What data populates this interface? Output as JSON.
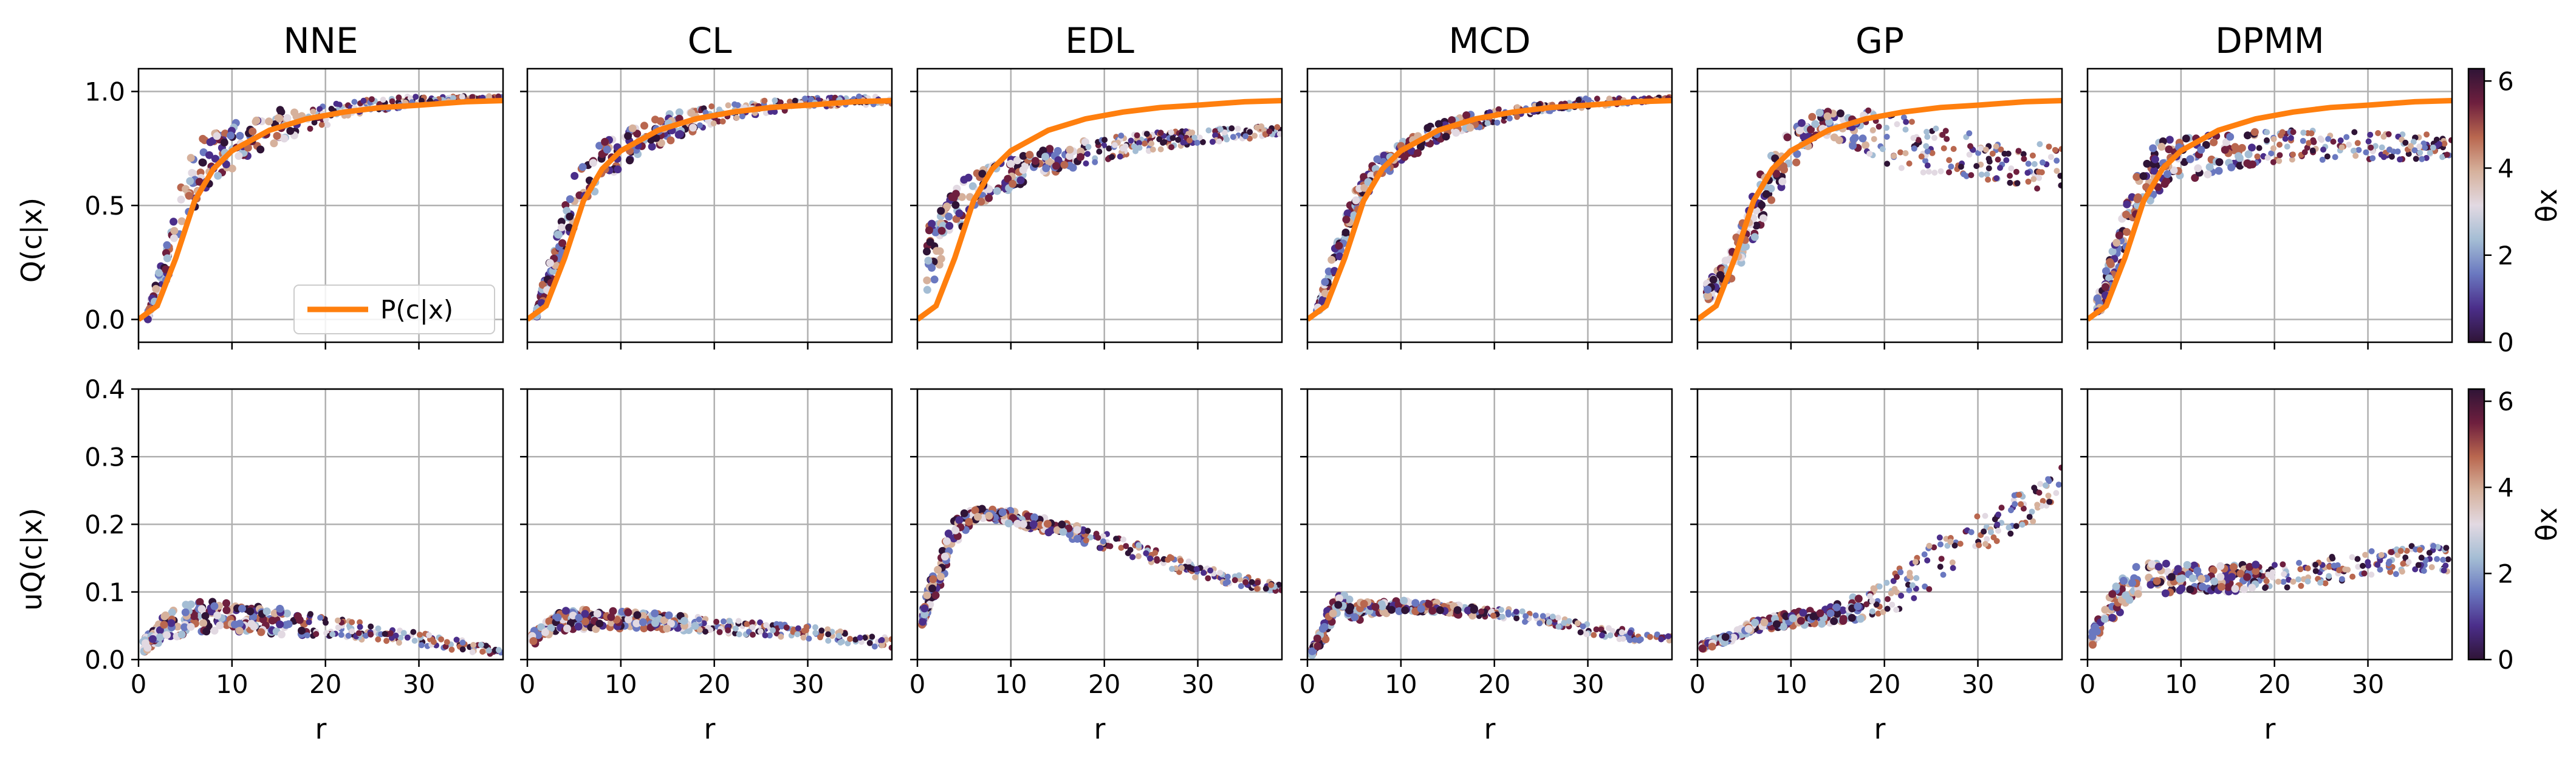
{
  "figure": {
    "colorbar_label": "θx",
    "colorbar_ticks": [
      "0",
      "2",
      "4",
      "6"
    ],
    "xlabel": "r",
    "row_labels": {
      "top": "Q(c|x)",
      "bottom": "uQ(c|x)"
    }
  },
  "colors": {
    "reference_line": "#ff7f0e",
    "grid": "#b0b0b0",
    "colormap_twilight_shifted": [
      "#2f1436",
      "#4b2e8a",
      "#6a78c0",
      "#a4bdd4",
      "#e2d9e2",
      "#d6b19c",
      "#b9674f",
      "#6e1f3e",
      "#2f1436"
    ]
  },
  "chart_data": [
    {
      "type": "scatter",
      "title": "NNE",
      "row": "Q(c|x)",
      "xlabel": "",
      "ylabel": "Q(c|x)",
      "xlim": [
        0,
        39
      ],
      "ylim": [
        -0.1,
        1.1
      ],
      "xticks": [
        0,
        10,
        20,
        30
      ],
      "yticks": [
        0.0,
        0.5,
        1.0
      ],
      "grid": true,
      "legend": {
        "entries": [
          "P(c|x)"
        ],
        "placement": "lower-right"
      },
      "reference": {
        "name": "P(c|x)",
        "x": [
          0,
          2,
          4,
          6,
          8,
          10,
          14,
          18,
          22,
          26,
          30,
          35,
          39
        ],
        "y": [
          0.0,
          0.06,
          0.27,
          0.52,
          0.66,
          0.74,
          0.83,
          0.88,
          0.91,
          0.93,
          0.94,
          0.955,
          0.96
        ]
      },
      "scatter": {
        "x": [
          1,
          3,
          5,
          7,
          10,
          15,
          20,
          25,
          30,
          35,
          39
        ],
        "y": [
          0.02,
          0.25,
          0.55,
          0.68,
          0.76,
          0.85,
          0.9,
          0.94,
          0.96,
          0.97,
          0.97
        ],
        "spread": [
          0.02,
          0.08,
          0.14,
          0.12,
          0.1,
          0.07,
          0.05,
          0.03,
          0.02,
          0.01,
          0.01
        ]
      }
    },
    {
      "type": "scatter",
      "title": "CL",
      "row": "Q(c|x)",
      "xlabel": "",
      "ylabel": "",
      "xlim": [
        0,
        39
      ],
      "ylim": [
        -0.1,
        1.1
      ],
      "xticks": [
        0,
        10,
        20,
        30
      ],
      "yticks": [
        0.0,
        0.5,
        1.0
      ],
      "grid": true,
      "reference": {
        "name": "P(c|x)",
        "x": [
          0,
          2,
          4,
          6,
          8,
          10,
          14,
          18,
          22,
          26,
          30,
          35,
          39
        ],
        "y": [
          0.0,
          0.06,
          0.27,
          0.52,
          0.66,
          0.74,
          0.83,
          0.88,
          0.91,
          0.93,
          0.94,
          0.955,
          0.96
        ]
      },
      "scatter": {
        "x": [
          1,
          3,
          5,
          7,
          10,
          15,
          20,
          25,
          30,
          35,
          39
        ],
        "y": [
          0.03,
          0.28,
          0.52,
          0.65,
          0.75,
          0.84,
          0.9,
          0.93,
          0.95,
          0.96,
          0.96
        ],
        "spread": [
          0.02,
          0.09,
          0.12,
          0.1,
          0.08,
          0.06,
          0.04,
          0.03,
          0.02,
          0.02,
          0.02
        ]
      }
    },
    {
      "type": "scatter",
      "title": "EDL",
      "row": "Q(c|x)",
      "xlabel": "",
      "ylabel": "",
      "xlim": [
        0,
        39
      ],
      "ylim": [
        -0.1,
        1.1
      ],
      "xticks": [
        0,
        10,
        20,
        30
      ],
      "yticks": [
        0.0,
        0.5,
        1.0
      ],
      "grid": true,
      "reference": {
        "name": "P(c|x)",
        "x": [
          0,
          2,
          4,
          6,
          8,
          10,
          14,
          18,
          22,
          26,
          30,
          35,
          39
        ],
        "y": [
          0.0,
          0.06,
          0.27,
          0.52,
          0.66,
          0.74,
          0.83,
          0.88,
          0.91,
          0.93,
          0.94,
          0.955,
          0.96
        ]
      },
      "scatter": {
        "x": [
          1,
          3,
          5,
          7,
          10,
          15,
          20,
          25,
          30,
          35,
          39
        ],
        "y": [
          0.25,
          0.4,
          0.52,
          0.58,
          0.64,
          0.7,
          0.75,
          0.78,
          0.8,
          0.82,
          0.83
        ],
        "spread": [
          0.15,
          0.12,
          0.1,
          0.08,
          0.07,
          0.06,
          0.05,
          0.04,
          0.03,
          0.03,
          0.02
        ]
      }
    },
    {
      "type": "scatter",
      "title": "MCD",
      "row": "Q(c|x)",
      "xlabel": "",
      "ylabel": "",
      "xlim": [
        0,
        39
      ],
      "ylim": [
        -0.1,
        1.1
      ],
      "xticks": [
        0,
        10,
        20,
        30
      ],
      "yticks": [
        0.0,
        0.5,
        1.0
      ],
      "grid": true,
      "reference": {
        "name": "P(c|x)",
        "x": [
          0,
          2,
          4,
          6,
          8,
          10,
          14,
          18,
          22,
          26,
          30,
          35,
          39
        ],
        "y": [
          0.0,
          0.06,
          0.27,
          0.52,
          0.66,
          0.74,
          0.83,
          0.88,
          0.91,
          0.93,
          0.94,
          0.955,
          0.96
        ]
      },
      "scatter": {
        "x": [
          1,
          3,
          5,
          7,
          10,
          15,
          20,
          25,
          30,
          35,
          39
        ],
        "y": [
          0.03,
          0.27,
          0.5,
          0.64,
          0.74,
          0.84,
          0.89,
          0.93,
          0.95,
          0.96,
          0.97
        ],
        "spread": [
          0.02,
          0.05,
          0.06,
          0.05,
          0.05,
          0.04,
          0.03,
          0.02,
          0.02,
          0.01,
          0.01
        ]
      }
    },
    {
      "type": "scatter",
      "title": "GP",
      "row": "Q(c|x)",
      "xlabel": "",
      "ylabel": "",
      "xlim": [
        0,
        39
      ],
      "ylim": [
        -0.1,
        1.1
      ],
      "xticks": [
        0,
        10,
        20,
        30
      ],
      "yticks": [
        0.0,
        0.5,
        1.0
      ],
      "grid": true,
      "reference": {
        "name": "P(c|x)",
        "x": [
          0,
          2,
          4,
          6,
          8,
          10,
          14,
          18,
          22,
          26,
          30,
          35,
          39
        ],
        "y": [
          0.0,
          0.06,
          0.27,
          0.52,
          0.66,
          0.74,
          0.83,
          0.88,
          0.91,
          0.93,
          0.94,
          0.955,
          0.96
        ]
      },
      "scatter": {
        "x": [
          1,
          3,
          5,
          7,
          10,
          13,
          16,
          20,
          25,
          30,
          35,
          39
        ],
        "y": [
          0.12,
          0.2,
          0.35,
          0.55,
          0.75,
          0.86,
          0.85,
          0.8,
          0.75,
          0.72,
          0.68,
          0.66
        ],
        "spread": [
          0.04,
          0.06,
          0.1,
          0.12,
          0.1,
          0.05,
          0.08,
          0.12,
          0.12,
          0.1,
          0.1,
          0.1
        ]
      }
    },
    {
      "type": "scatter",
      "title": "DPMM",
      "row": "Q(c|x)",
      "xlabel": "",
      "ylabel": "",
      "xlim": [
        0,
        39
      ],
      "ylim": [
        -0.1,
        1.1
      ],
      "xticks": [
        0,
        10,
        20,
        30
      ],
      "yticks": [
        0.0,
        0.5,
        1.0
      ],
      "grid": true,
      "reference": {
        "name": "P(c|x)",
        "x": [
          0,
          2,
          4,
          6,
          8,
          10,
          14,
          18,
          22,
          26,
          30,
          35,
          39
        ],
        "y": [
          0.0,
          0.06,
          0.27,
          0.52,
          0.66,
          0.74,
          0.83,
          0.88,
          0.91,
          0.93,
          0.94,
          0.955,
          0.96
        ]
      },
      "scatter": {
        "x": [
          1,
          3,
          5,
          7,
          10,
          15,
          20,
          25,
          30,
          35,
          39
        ],
        "y": [
          0.05,
          0.25,
          0.5,
          0.66,
          0.7,
          0.74,
          0.76,
          0.76,
          0.76,
          0.76,
          0.76
        ],
        "spread": [
          0.04,
          0.1,
          0.12,
          0.12,
          0.1,
          0.08,
          0.07,
          0.07,
          0.06,
          0.06,
          0.05
        ]
      }
    },
    {
      "type": "scatter",
      "title": "",
      "row": "uQ(c|x)",
      "xlabel": "r",
      "ylabel": "uQ(c|x)",
      "xlim": [
        0,
        39
      ],
      "ylim": [
        0,
        0.4
      ],
      "xticks": [
        0,
        10,
        20,
        30
      ],
      "yticks": [
        0.0,
        0.1,
        0.2,
        0.3,
        0.4
      ],
      "grid": true,
      "scatter": {
        "x": [
          0.5,
          3,
          5,
          8,
          12,
          16,
          20,
          25,
          30,
          35,
          39
        ],
        "y": [
          0.02,
          0.05,
          0.06,
          0.065,
          0.06,
          0.055,
          0.05,
          0.04,
          0.03,
          0.02,
          0.01
        ],
        "spread": [
          0.01,
          0.02,
          0.025,
          0.025,
          0.02,
          0.02,
          0.015,
          0.012,
          0.01,
          0.008,
          0.005
        ]
      }
    },
    {
      "type": "scatter",
      "title": "",
      "row": "uQ(c|x)",
      "xlabel": "r",
      "ylabel": "",
      "xlim": [
        0,
        39
      ],
      "ylim": [
        0,
        0.4
      ],
      "xticks": [
        0,
        10,
        20,
        30
      ],
      "yticks": [
        0.0,
        0.1,
        0.2,
        0.3,
        0.4
      ],
      "grid": true,
      "scatter": {
        "x": [
          0.5,
          3,
          5,
          8,
          12,
          16,
          20,
          25,
          30,
          35,
          39
        ],
        "y": [
          0.03,
          0.055,
          0.06,
          0.06,
          0.058,
          0.055,
          0.05,
          0.045,
          0.04,
          0.03,
          0.025
        ],
        "spread": [
          0.01,
          0.015,
          0.015,
          0.015,
          0.012,
          0.012,
          0.01,
          0.01,
          0.01,
          0.008,
          0.008
        ]
      }
    },
    {
      "type": "scatter",
      "title": "",
      "row": "uQ(c|x)",
      "xlabel": "r",
      "ylabel": "",
      "xlim": [
        0,
        39
      ],
      "ylim": [
        0,
        0.4
      ],
      "xticks": [
        0,
        10,
        20,
        30
      ],
      "yticks": [
        0.0,
        0.1,
        0.2,
        0.3,
        0.4
      ],
      "grid": true,
      "scatter": {
        "x": [
          0.5,
          2,
          4,
          6,
          10,
          15,
          20,
          25,
          30,
          35,
          39
        ],
        "y": [
          0.06,
          0.12,
          0.19,
          0.215,
          0.21,
          0.195,
          0.175,
          0.155,
          0.13,
          0.115,
          0.105
        ],
        "spread": [
          0.01,
          0.03,
          0.02,
          0.01,
          0.01,
          0.01,
          0.012,
          0.012,
          0.01,
          0.008,
          0.006
        ]
      }
    },
    {
      "type": "scatter",
      "title": "",
      "row": "uQ(c|x)",
      "xlabel": "r",
      "ylabel": "",
      "xlim": [
        0,
        39
      ],
      "ylim": [
        0,
        0.4
      ],
      "xticks": [
        0,
        10,
        20,
        30
      ],
      "yticks": [
        0.0,
        0.1,
        0.2,
        0.3,
        0.4
      ],
      "grid": true,
      "scatter": {
        "x": [
          0.5,
          2,
          3.5,
          5,
          7,
          10,
          15,
          20,
          25,
          30,
          35,
          39
        ],
        "y": [
          0.01,
          0.05,
          0.09,
          0.07,
          0.075,
          0.08,
          0.075,
          0.07,
          0.06,
          0.045,
          0.035,
          0.03
        ],
        "spread": [
          0.005,
          0.02,
          0.01,
          0.015,
          0.01,
          0.008,
          0.008,
          0.008,
          0.008,
          0.008,
          0.008,
          0.006
        ]
      }
    },
    {
      "type": "scatter",
      "title": "",
      "row": "uQ(c|x)",
      "xlabel": "r",
      "ylabel": "",
      "xlim": [
        0,
        39
      ],
      "ylim": [
        0,
        0.4
      ],
      "xticks": [
        0,
        10,
        20,
        30
      ],
      "yticks": [
        0.0,
        0.1,
        0.2,
        0.3,
        0.4
      ],
      "grid": true,
      "scatter": {
        "x": [
          0.5,
          3,
          6,
          10,
          14,
          18,
          21,
          24,
          27,
          30,
          33,
          36,
          39
        ],
        "y": [
          0.02,
          0.03,
          0.05,
          0.06,
          0.065,
          0.08,
          0.1,
          0.13,
          0.16,
          0.19,
          0.21,
          0.23,
          0.26
        ],
        "spread": [
          0.005,
          0.006,
          0.008,
          0.01,
          0.012,
          0.02,
          0.03,
          0.035,
          0.035,
          0.03,
          0.03,
          0.025,
          0.025
        ]
      }
    },
    {
      "type": "scatter",
      "title": "",
      "row": "uQ(c|x)",
      "xlabel": "r",
      "ylabel": "",
      "xlim": [
        0,
        39
      ],
      "ylim": [
        0,
        0.4
      ],
      "xticks": [
        0,
        10,
        20,
        30
      ],
      "yticks": [
        0.0,
        0.1,
        0.2,
        0.3,
        0.4
      ],
      "grid": true,
      "scatter": {
        "x": [
          0.5,
          2,
          4,
          6,
          10,
          15,
          20,
          25,
          30,
          35,
          39
        ],
        "y": [
          0.03,
          0.07,
          0.1,
          0.12,
          0.12,
          0.12,
          0.125,
          0.13,
          0.14,
          0.15,
          0.15
        ],
        "spread": [
          0.01,
          0.02,
          0.025,
          0.025,
          0.02,
          0.02,
          0.02,
          0.02,
          0.02,
          0.02,
          0.02
        ]
      }
    }
  ]
}
